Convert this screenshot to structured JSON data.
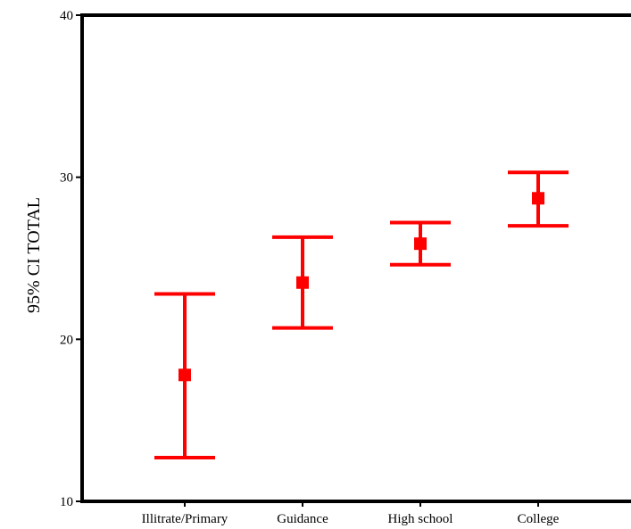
{
  "chart_data": {
    "type": "errorbar",
    "ylabel": "95% CI TOTAL",
    "xlabel": "",
    "title": "",
    "ylim": [
      10,
      40
    ],
    "yticks": [
      10,
      20,
      30,
      40
    ],
    "grid": false,
    "legend": "none",
    "categories": [
      "Illitrate/Primary",
      "Guidance",
      "High school",
      "College"
    ],
    "series": [
      {
        "mean": [
          17.8,
          23.5,
          25.9,
          28.7
        ],
        "lower": [
          12.7,
          20.7,
          24.6,
          27.0
        ],
        "upper": [
          22.8,
          26.3,
          27.2,
          30.3
        ]
      }
    ],
    "color": "#ff0000",
    "axis_color": "#000000"
  }
}
